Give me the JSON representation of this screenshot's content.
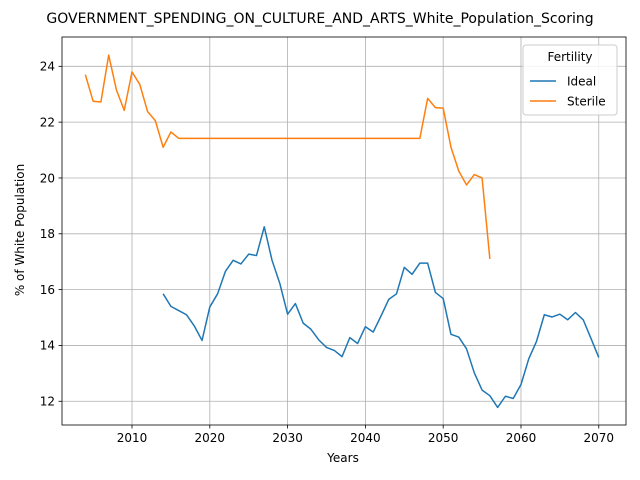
{
  "chart_data": {
    "type": "line",
    "title": "GOVERNMENT_SPENDING_ON_CULTURE_AND_ARTS_White_Population_Scoring",
    "xlabel": "Years",
    "ylabel": "% of White Population",
    "xlim": [
      2001,
      2073.5
    ],
    "ylim": [
      11.15,
      25.05
    ],
    "xticks": [
      2010,
      2020,
      2030,
      2040,
      2050,
      2060,
      2070
    ],
    "yticks": [
      12,
      14,
      16,
      18,
      20,
      22,
      24
    ],
    "grid": true,
    "legend": {
      "title": "Fertility",
      "position": "top-right"
    },
    "series": [
      {
        "name": "Ideal",
        "color": "#1f77b4",
        "x": [
          2014,
          2015,
          2016,
          2017,
          2018,
          2019,
          2020,
          2021,
          2022,
          2023,
          2024,
          2025,
          2026,
          2027,
          2028,
          2029,
          2030,
          2031,
          2032,
          2033,
          2034,
          2035,
          2036,
          2037,
          2038,
          2039,
          2040,
          2041,
          2042,
          2043,
          2044,
          2045,
          2046,
          2047,
          2048,
          2049,
          2050,
          2051,
          2052,
          2053,
          2054,
          2055,
          2056,
          2057,
          2058,
          2059,
          2060,
          2061,
          2062,
          2063,
          2064,
          2065,
          2066,
          2067,
          2068,
          2069,
          2070
        ],
        "y": [
          15.85,
          15.4,
          15.25,
          15.1,
          14.7,
          14.18,
          15.38,
          15.85,
          16.65,
          17.05,
          16.92,
          17.27,
          17.22,
          18.25,
          17.05,
          16.22,
          15.12,
          15.5,
          14.8,
          14.58,
          14.2,
          13.93,
          13.82,
          13.6,
          14.28,
          14.07,
          14.67,
          14.48,
          15.05,
          15.65,
          15.85,
          16.8,
          16.55,
          16.95,
          16.95,
          15.9,
          15.68,
          14.4,
          14.3,
          13.88,
          13.02,
          12.4,
          12.2,
          11.78,
          12.18,
          12.1,
          12.6,
          13.52,
          14.15,
          15.1,
          15.02,
          15.12,
          14.92,
          15.18,
          14.92,
          14.25,
          13.57
        ]
      },
      {
        "name": "Sterile",
        "color": "#ff7f0e",
        "x": [
          2004,
          2005,
          2006,
          2007,
          2008,
          2009,
          2010,
          2011,
          2012,
          2013,
          2014,
          2015,
          2016,
          2017,
          2018,
          2019,
          2020,
          2021,
          2022,
          2023,
          2024,
          2025,
          2026,
          2027,
          2028,
          2029,
          2030,
          2031,
          2032,
          2033,
          2034,
          2035,
          2036,
          2037,
          2038,
          2039,
          2040,
          2041,
          2042,
          2043,
          2044,
          2045,
          2046,
          2047,
          2048,
          2049,
          2050,
          2051,
          2052,
          2053,
          2054,
          2055,
          2056
        ],
        "y": [
          23.7,
          22.75,
          22.72,
          24.4,
          23.15,
          22.42,
          23.8,
          23.35,
          22.38,
          22.05,
          21.1,
          21.65,
          21.42,
          21.42,
          21.42,
          21.42,
          21.42,
          21.42,
          21.42,
          21.42,
          21.42,
          21.42,
          21.42,
          21.42,
          21.42,
          21.42,
          21.42,
          21.42,
          21.42,
          21.42,
          21.42,
          21.42,
          21.42,
          21.42,
          21.42,
          21.42,
          21.42,
          21.42,
          21.42,
          21.42,
          21.42,
          21.42,
          21.42,
          21.42,
          22.85,
          22.52,
          22.5,
          21.1,
          20.25,
          19.75,
          20.12,
          20.0,
          17.1
        ]
      }
    ]
  }
}
